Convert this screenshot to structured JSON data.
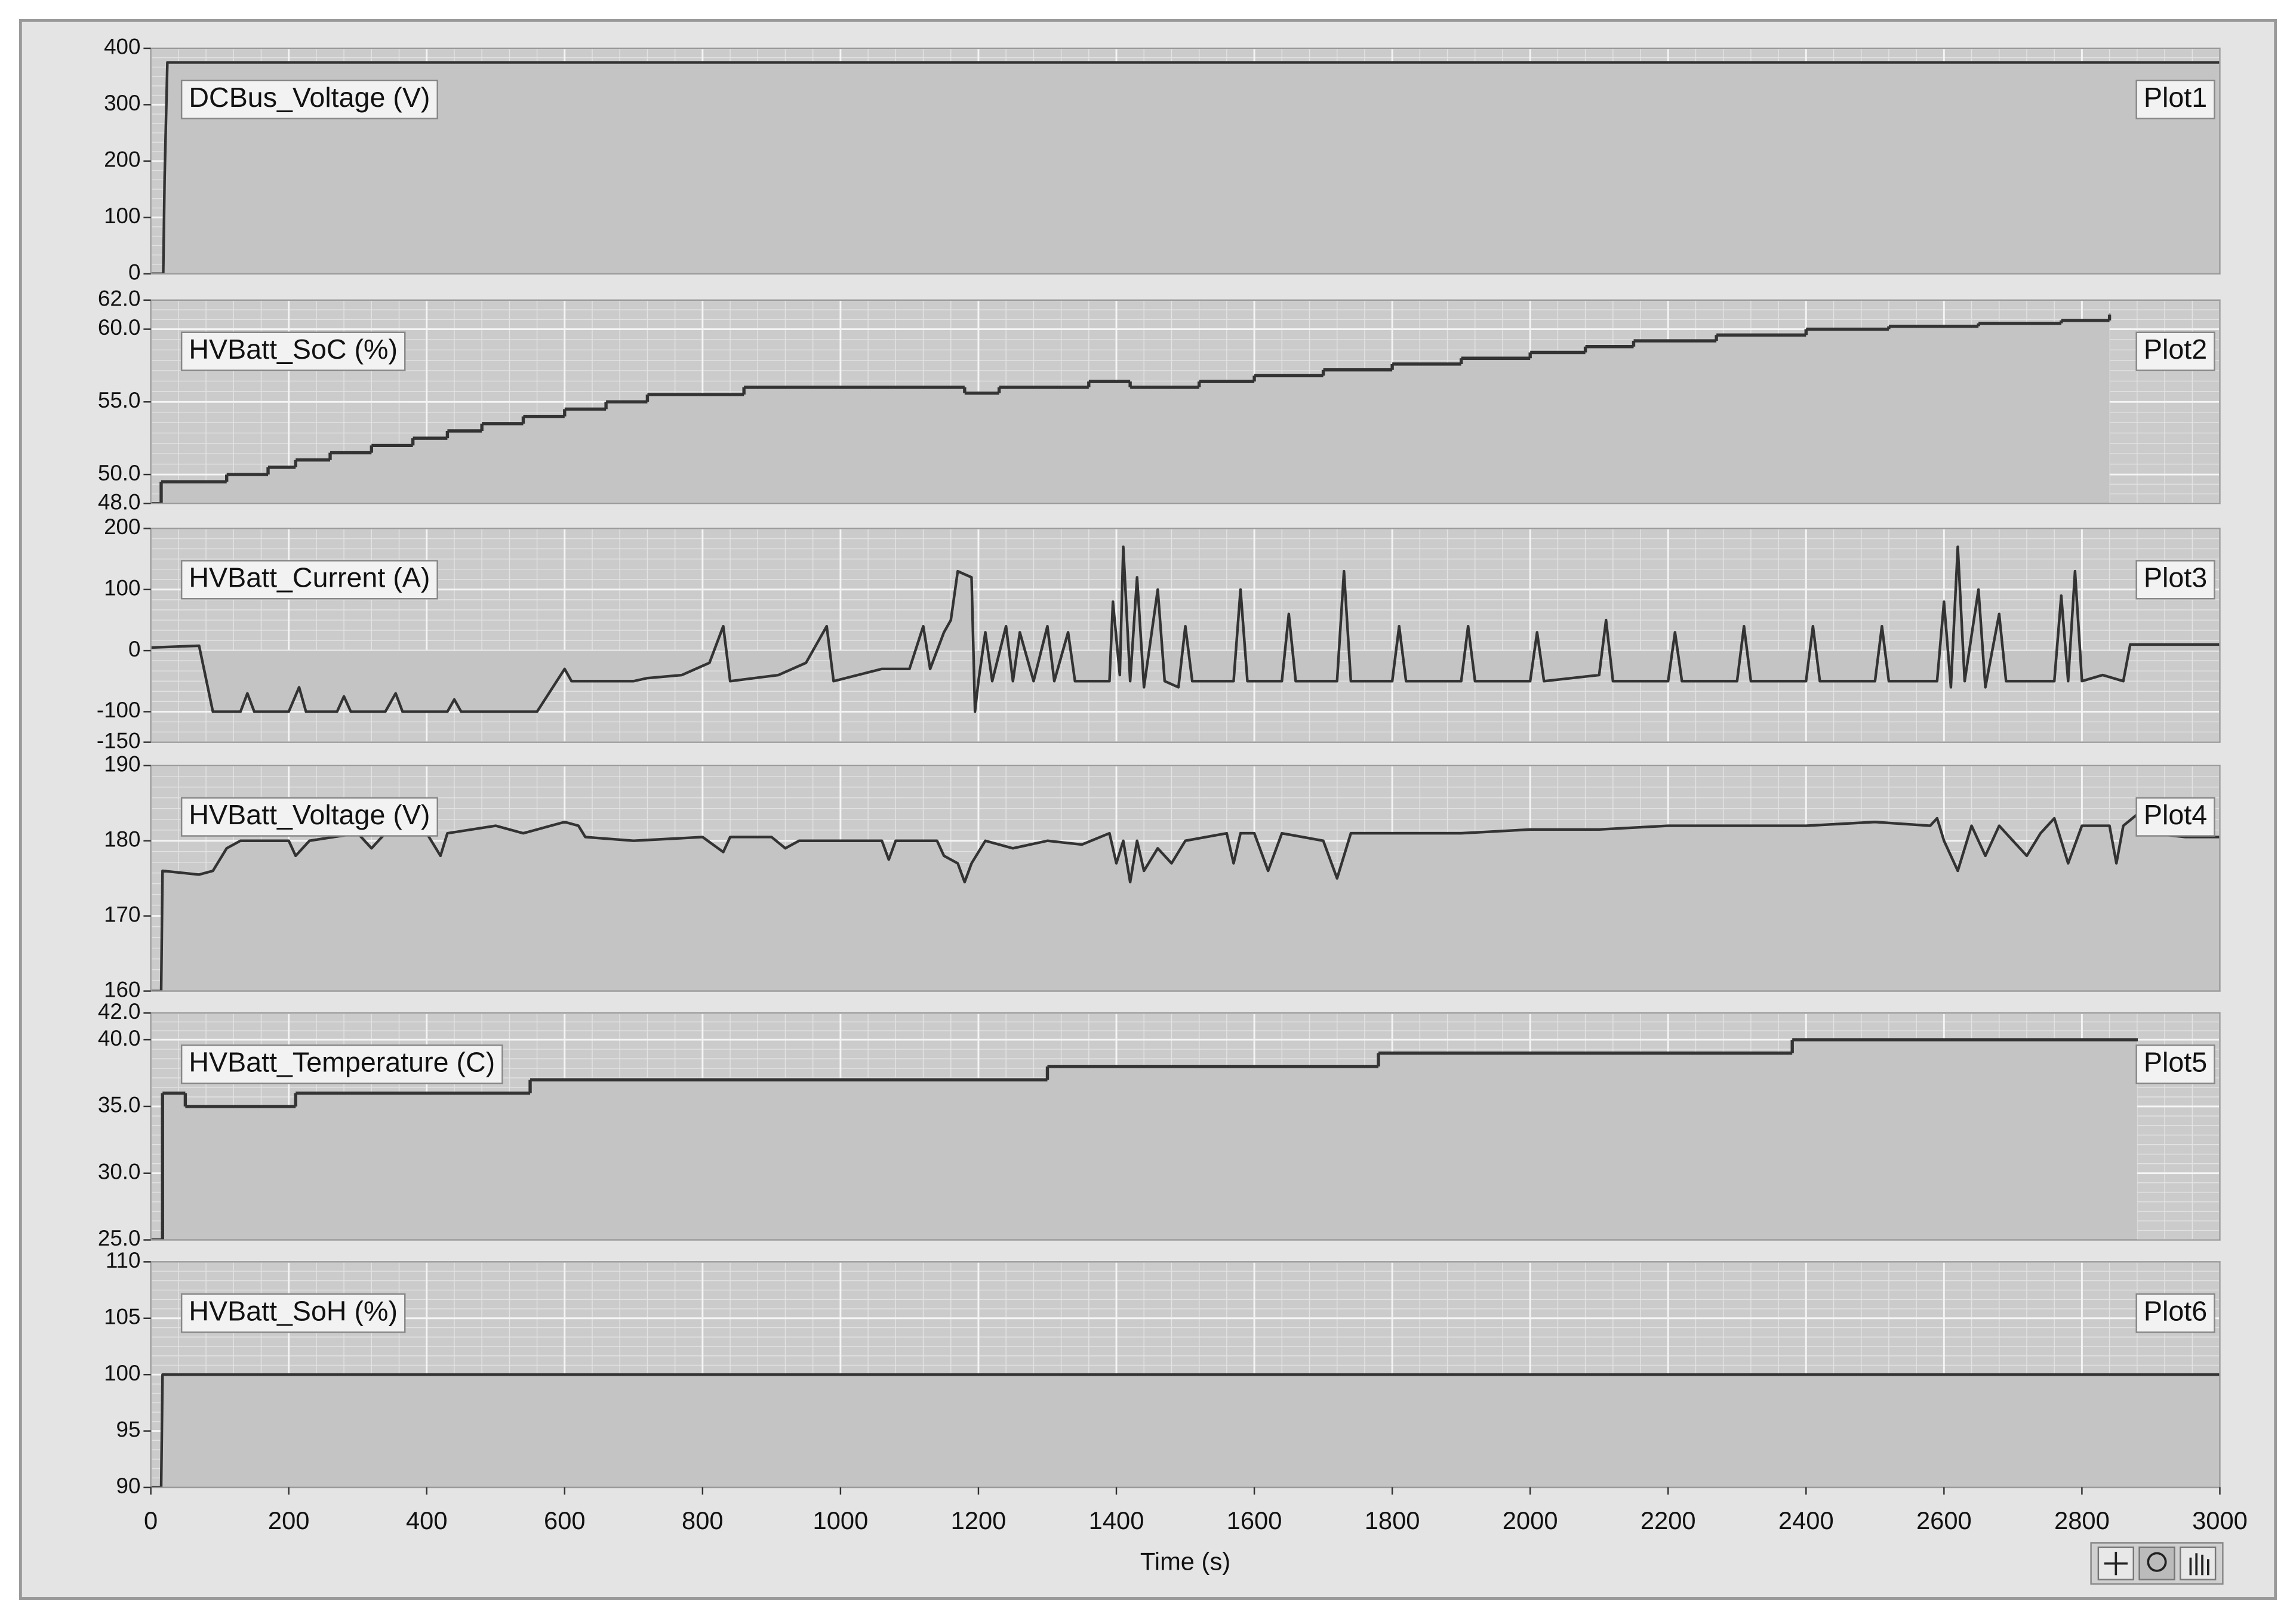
{
  "chart_data": [
    {
      "type": "area",
      "ylabel": "DCBus_Voltage (V)",
      "xlim": [
        0,
        3000
      ],
      "xticks": [
        0,
        200,
        400,
        600,
        800,
        1000,
        1200,
        1400,
        1600,
        1800,
        2000,
        2200,
        2400,
        2600,
        2800,
        3000
      ],
      "ylim": [
        0,
        400
      ],
      "yticks": [
        0,
        100,
        200,
        300,
        400
      ],
      "grid": true,
      "step": false,
      "x": [
        0,
        18,
        20,
        24,
        3000
      ],
      "series": [
        {
          "name": "Plot1",
          "color": "#333333",
          "fill": "#c4c4c4",
          "values": [
            0,
            0,
            170,
            375,
            375
          ]
        }
      ]
    },
    {
      "type": "area",
      "ylabel": "HVBatt_SoC (%)",
      "xlim": [
        0,
        3000
      ],
      "xticks": [
        0,
        200,
        400,
        600,
        800,
        1000,
        1200,
        1400,
        1600,
        1800,
        2000,
        2200,
        2400,
        2600,
        2800,
        3000
      ],
      "ylim": [
        48,
        62
      ],
      "yticks": [
        {
          "value": 48,
          "label": "48.0"
        },
        {
          "value": 50,
          "label": "50.0"
        },
        {
          "value": 55,
          "label": "55.0"
        },
        {
          "value": 60,
          "label": "60.0"
        },
        {
          "value": 62,
          "label": "62.0"
        }
      ],
      "grid": true,
      "step": true,
      "x": [
        0,
        15,
        110,
        170,
        210,
        260,
        320,
        380,
        430,
        480,
        540,
        600,
        660,
        720,
        860,
        1180,
        1230,
        1360,
        1420,
        1520,
        1600,
        1700,
        1800,
        1900,
        2000,
        2080,
        2150,
        2270,
        2400,
        2520,
        2650,
        2770,
        2840
      ],
      "series": [
        {
          "name": "Plot2",
          "color": "#333333",
          "fill": "#c4c4c4",
          "values": [
            48,
            49.5,
            50,
            50.5,
            51,
            51.5,
            52,
            52.5,
            53,
            53.5,
            54,
            54.5,
            55,
            55.5,
            56,
            55.6,
            56,
            56.4,
            56,
            56.4,
            56.8,
            57.2,
            57.6,
            58,
            58.4,
            58.8,
            59.2,
            59.6,
            60,
            60.2,
            60.4,
            60.6,
            61
          ]
        }
      ]
    },
    {
      "type": "area",
      "ylabel": "HVBatt_Current (A)",
      "xlim": [
        0,
        3000
      ],
      "xticks": [
        0,
        200,
        400,
        600,
        800,
        1000,
        1200,
        1400,
        1600,
        1800,
        2000,
        2200,
        2400,
        2600,
        2800,
        3000
      ],
      "ylim": [
        -150,
        200
      ],
      "yticks": [
        -150,
        -100,
        0,
        100,
        200
      ],
      "grid": true,
      "step": false,
      "x": [
        0,
        70,
        90,
        130,
        140,
        150,
        200,
        215,
        225,
        270,
        280,
        290,
        340,
        355,
        365,
        430,
        440,
        450,
        520,
        560,
        600,
        610,
        640,
        700,
        720,
        770,
        810,
        830,
        840,
        910,
        950,
        980,
        990,
        1060,
        1100,
        1120,
        1130,
        1150,
        1160,
        1170,
        1190,
        1195,
        1200,
        1210,
        1220,
        1240,
        1250,
        1260,
        1280,
        1300,
        1310,
        1330,
        1340,
        1390,
        1395,
        1405,
        1410,
        1420,
        1430,
        1440,
        1460,
        1470,
        1490,
        1500,
        1510,
        1570,
        1580,
        1590,
        1640,
        1650,
        1660,
        1720,
        1730,
        1740,
        1800,
        1810,
        1820,
        1900,
        1910,
        1920,
        2000,
        2010,
        2020,
        2100,
        2110,
        2120,
        2200,
        2210,
        2220,
        2300,
        2310,
        2320,
        2400,
        2410,
        2420,
        2500,
        2510,
        2520,
        2590,
        2600,
        2610,
        2620,
        2630,
        2650,
        2660,
        2680,
        2690,
        2760,
        2770,
        2780,
        2790,
        2800,
        2830,
        2860,
        2870,
        3000
      ],
      "series": [
        {
          "name": "Plot3",
          "color": "#333333",
          "fill": "#c4c4c4",
          "values": [
            5,
            8,
            -100,
            -100,
            -70,
            -100,
            -100,
            -60,
            -100,
            -100,
            -75,
            -100,
            -100,
            -70,
            -100,
            -100,
            -80,
            -100,
            -100,
            -100,
            -30,
            -50,
            -50,
            -50,
            -45,
            -40,
            -20,
            40,
            -50,
            -40,
            -20,
            40,
            -50,
            -30,
            -30,
            40,
            -30,
            30,
            50,
            130,
            120,
            -100,
            -50,
            30,
            -50,
            40,
            -50,
            30,
            -50,
            40,
            -50,
            30,
            -50,
            -50,
            80,
            -40,
            170,
            -50,
            120,
            -60,
            100,
            -50,
            -60,
            40,
            -50,
            -50,
            100,
            -50,
            -50,
            60,
            -50,
            -50,
            130,
            -50,
            -50,
            40,
            -50,
            -50,
            40,
            -50,
            -50,
            30,
            -50,
            -40,
            50,
            -50,
            -50,
            30,
            -50,
            -50,
            40,
            -50,
            -50,
            40,
            -50,
            -50,
            40,
            -50,
            -50,
            80,
            -60,
            170,
            -50,
            100,
            -60,
            60,
            -50,
            -50,
            90,
            -50,
            130,
            -50,
            -40,
            -50,
            10,
            10
          ]
        }
      ]
    },
    {
      "type": "area",
      "ylabel": "HVBatt_Voltage (V)",
      "xlim": [
        0,
        3000
      ],
      "xticks": [
        0,
        200,
        400,
        600,
        800,
        1000,
        1200,
        1400,
        1600,
        1800,
        2000,
        2200,
        2400,
        2600,
        2800,
        3000
      ],
      "ylim": [
        160,
        190
      ],
      "yticks": [
        160,
        170,
        180,
        190
      ],
      "grid": true,
      "step": false,
      "x": [
        0,
        15,
        17,
        70,
        90,
        110,
        130,
        200,
        210,
        230,
        300,
        320,
        340,
        400,
        420,
        430,
        500,
        540,
        580,
        600,
        620,
        630,
        700,
        800,
        830,
        840,
        900,
        920,
        940,
        1000,
        1060,
        1070,
        1080,
        1140,
        1150,
        1170,
        1180,
        1190,
        1210,
        1250,
        1300,
        1350,
        1390,
        1400,
        1410,
        1420,
        1430,
        1440,
        1460,
        1480,
        1500,
        1560,
        1570,
        1580,
        1600,
        1620,
        1640,
        1700,
        1720,
        1740,
        1800,
        1900,
        2000,
        2100,
        2200,
        2300,
        2400,
        2500,
        2580,
        2590,
        2600,
        2620,
        2640,
        2660,
        2680,
        2720,
        2740,
        2760,
        2780,
        2800,
        2840,
        2850,
        2860,
        2880,
        2900,
        2950,
        3000
      ],
      "series": [
        {
          "name": "Plot4",
          "color": "#333333",
          "fill": "#c4c4c4",
          "values": [
            160,
            160,
            176,
            175.5,
            176,
            179,
            180,
            180,
            178,
            180,
            181,
            179,
            181,
            181,
            178,
            181,
            182,
            181,
            182,
            182.5,
            182,
            180.5,
            180,
            180.5,
            178.5,
            180.5,
            180.5,
            179,
            180,
            180,
            180,
            177.5,
            180,
            180,
            178,
            177,
            174.5,
            177,
            180,
            179,
            180,
            179.5,
            181,
            177,
            180,
            174.5,
            180,
            176,
            179,
            177,
            180,
            181,
            177,
            181,
            181,
            176,
            181,
            180,
            175,
            181,
            181,
            181,
            181.5,
            181.5,
            182,
            182,
            182,
            182.5,
            182,
            183,
            180,
            176,
            182,
            178,
            182,
            178,
            181,
            183,
            177,
            182,
            182,
            177,
            182,
            183.5,
            181,
            180.5,
            180.5
          ]
        }
      ]
    },
    {
      "type": "area",
      "ylabel": "HVBatt_Temperature (C)",
      "xlim": [
        0,
        3000
      ],
      "xticks": [
        0,
        200,
        400,
        600,
        800,
        1000,
        1200,
        1400,
        1600,
        1800,
        2000,
        2200,
        2400,
        2600,
        2800,
        3000
      ],
      "ylim": [
        25,
        42
      ],
      "yticks": [
        {
          "value": 25,
          "label": "25.0"
        },
        {
          "value": 30,
          "label": "30.0"
        },
        {
          "value": 35,
          "label": "35.0"
        },
        {
          "value": 40,
          "label": "40.0"
        },
        {
          "value": 42,
          "label": "42.0"
        }
      ],
      "grid": true,
      "step": true,
      "x": [
        0,
        15,
        17,
        50,
        210,
        550,
        1300,
        1780,
        2380,
        2880
      ],
      "series": [
        {
          "name": "Plot5",
          "color": "#333333",
          "fill": "#c4c4c4",
          "values": [
            25,
            25,
            36,
            35,
            36,
            37,
            38,
            39,
            40,
            40
          ]
        }
      ]
    },
    {
      "type": "area",
      "ylabel": "HVBatt_SoH (%)",
      "xlabel": "Time (s)",
      "xlim": [
        0,
        3000
      ],
      "xticks": [
        0,
        200,
        400,
        600,
        800,
        1000,
        1200,
        1400,
        1600,
        1800,
        2000,
        2200,
        2400,
        2600,
        2800,
        3000
      ],
      "ylim": [
        90,
        110
      ],
      "yticks": [
        90,
        95,
        100,
        105,
        110
      ],
      "grid": true,
      "step": false,
      "x": [
        0,
        15,
        17,
        3000
      ],
      "series": [
        {
          "name": "Plot6",
          "color": "#333333",
          "fill": "#c4c4c4",
          "values": [
            90,
            90,
            100,
            100
          ]
        }
      ]
    }
  ]
}
